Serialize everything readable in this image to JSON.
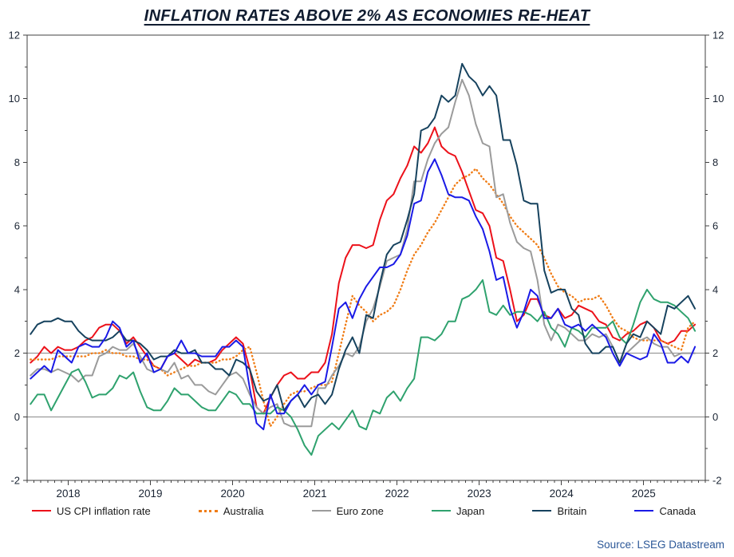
{
  "title": "INFLATION RATES ABOVE 2% AS ECONOMIES RE-HEAT",
  "source": "Source: LSEG Datastream",
  "colors": {
    "title_text": "#101c30",
    "axis_text": "#1a2433",
    "frame": "#404040",
    "reference_line": "#8a8a8a",
    "source_text": "#2b5797"
  },
  "chart_data": {
    "type": "line",
    "title": "INFLATION RATES ABOVE 2% AS ECONOMIES RE-HEAT",
    "xlabel": "",
    "ylabel": "",
    "legend_position": "bottom",
    "grid": "reference lines at 0 and 2 only",
    "x_start": {
      "year": 2017,
      "month": 7
    },
    "x_frequency": "monthly",
    "x_axis": {
      "range": [
        2017.5,
        2025.75
      ],
      "tick_labels": [
        "2018",
        "2019",
        "2020",
        "2021",
        "2022",
        "2023",
        "2024",
        "2025"
      ],
      "tick_positions": [
        2018,
        2019,
        2020,
        2021,
        2022,
        2023,
        2024,
        2025
      ]
    },
    "y_axis": {
      "range": [
        -2,
        12
      ],
      "tick_step": 2,
      "tick_labels": [
        "-2",
        "0",
        "2",
        "4",
        "6",
        "8",
        "10",
        "12"
      ],
      "labels_on_both_sides": true,
      "reference_lines": [
        0,
        2
      ]
    },
    "series": [
      {
        "name": "US CPI inflation rate",
        "color": "#ec111a",
        "style": "solid",
        "values": [
          1.7,
          1.9,
          2.2,
          2.0,
          2.2,
          2.1,
          2.1,
          2.2,
          2.4,
          2.5,
          2.8,
          2.9,
          2.9,
          2.7,
          2.3,
          2.5,
          2.2,
          1.9,
          1.6,
          1.5,
          1.9,
          2.0,
          1.8,
          1.6,
          1.8,
          1.7,
          1.7,
          1.8,
          2.1,
          2.3,
          2.5,
          2.3,
          1.5,
          0.3,
          0.1,
          0.6,
          1.0,
          1.3,
          1.4,
          1.2,
          1.2,
          1.4,
          1.4,
          1.7,
          2.6,
          4.2,
          5.0,
          5.4,
          5.4,
          5.3,
          5.4,
          6.2,
          6.8,
          7.0,
          7.5,
          7.9,
          8.5,
          8.3,
          8.6,
          9.1,
          8.5,
          8.3,
          8.2,
          7.7,
          7.1,
          6.5,
          6.4,
          6.0,
          5.0,
          4.9,
          4.0,
          3.0,
          3.2,
          3.7,
          3.7,
          3.2,
          3.1,
          3.4,
          3.1,
          3.2,
          3.5,
          3.4,
          3.3,
          3.0,
          2.9,
          2.5,
          2.4,
          2.6,
          2.7,
          2.9,
          3.0,
          2.8,
          2.4,
          2.3,
          2.4,
          2.7,
          2.7,
          2.9
        ]
      },
      {
        "name": "Australia",
        "color": "#f07d17",
        "style": "dotted",
        "values": [
          1.8,
          1.8,
          1.8,
          1.8,
          1.9,
          1.9,
          1.9,
          1.9,
          1.9,
          2.0,
          2.0,
          2.1,
          2.0,
          2.0,
          1.9,
          1.9,
          1.8,
          1.8,
          1.6,
          1.5,
          1.3,
          1.4,
          1.5,
          1.6,
          1.6,
          1.7,
          1.7,
          1.7,
          1.8,
          1.8,
          1.9,
          2.1,
          2.2,
          1.4,
          0.5,
          -0.3,
          0.0,
          0.4,
          0.7,
          0.8,
          0.8,
          0.9,
          1.0,
          1.0,
          1.1,
          2.0,
          2.9,
          3.8,
          3.5,
          3.3,
          3.0,
          3.2,
          3.3,
          3.5,
          4.0,
          4.6,
          5.1,
          5.4,
          5.8,
          6.1,
          6.5,
          6.9,
          7.3,
          7.5,
          7.6,
          7.8,
          7.5,
          7.3,
          7.0,
          6.7,
          6.3,
          6.0,
          5.8,
          5.6,
          5.4,
          5.0,
          4.5,
          4.1,
          3.9,
          3.8,
          3.6,
          3.7,
          3.7,
          3.8,
          3.5,
          3.1,
          2.8,
          2.7,
          2.5,
          2.4,
          2.4,
          2.4,
          2.4,
          2.3,
          2.2,
          2.1,
          2.8,
          3.0
        ]
      },
      {
        "name": "Euro zone",
        "color": "#9b9b9b",
        "style": "solid",
        "values": [
          1.3,
          1.5,
          1.5,
          1.4,
          1.5,
          1.4,
          1.3,
          1.1,
          1.3,
          1.3,
          1.9,
          2.0,
          2.2,
          2.1,
          2.1,
          2.3,
          1.9,
          1.5,
          1.4,
          1.5,
          1.4,
          1.7,
          1.2,
          1.3,
          1.0,
          1.0,
          0.8,
          0.7,
          1.0,
          1.3,
          1.4,
          1.2,
          0.7,
          0.3,
          0.1,
          0.3,
          0.4,
          -0.2,
          -0.3,
          -0.3,
          -0.3,
          -0.3,
          0.9,
          0.9,
          1.3,
          1.6,
          2.0,
          1.9,
          2.2,
          3.0,
          3.4,
          4.1,
          4.9,
          5.0,
          5.1,
          5.9,
          7.4,
          7.4,
          8.1,
          8.6,
          8.9,
          9.1,
          9.9,
          10.6,
          10.1,
          9.2,
          8.6,
          8.5,
          6.9,
          7.0,
          6.1,
          5.5,
          5.3,
          5.2,
          4.3,
          2.9,
          2.4,
          2.9,
          2.8,
          2.6,
          2.4,
          2.4,
          2.6,
          2.5,
          2.6,
          2.2,
          1.7,
          2.0,
          2.2,
          2.4,
          2.5,
          2.3,
          2.2,
          2.2,
          1.9,
          2.0,
          2.0,
          2.0
        ]
      },
      {
        "name": "Japan",
        "color": "#2fa26e",
        "style": "solid",
        "values": [
          0.4,
          0.7,
          0.7,
          0.2,
          0.6,
          1.0,
          1.4,
          1.5,
          1.1,
          0.6,
          0.7,
          0.7,
          0.9,
          1.3,
          1.2,
          1.4,
          0.8,
          0.3,
          0.2,
          0.2,
          0.5,
          0.9,
          0.7,
          0.7,
          0.5,
          0.3,
          0.2,
          0.2,
          0.5,
          0.8,
          0.7,
          0.4,
          0.4,
          0.1,
          0.1,
          0.1,
          0.3,
          0.2,
          0.0,
          -0.4,
          -0.9,
          -1.2,
          -0.6,
          -0.4,
          -0.2,
          -0.4,
          -0.1,
          0.2,
          -0.3,
          -0.4,
          0.2,
          0.1,
          0.6,
          0.8,
          0.5,
          0.9,
          1.2,
          2.5,
          2.5,
          2.4,
          2.6,
          3.0,
          3.0,
          3.7,
          3.8,
          4.0,
          4.3,
          3.3,
          3.2,
          3.5,
          3.2,
          3.3,
          3.3,
          3.2,
          3.0,
          3.3,
          2.8,
          2.6,
          2.2,
          2.8,
          2.7,
          2.5,
          2.8,
          2.8,
          2.8,
          3.0,
          2.5,
          2.3,
          2.9,
          3.6,
          4.0,
          3.7,
          3.6,
          3.6,
          3.5,
          3.3,
          3.1,
          2.7
        ]
      },
      {
        "name": "Britain",
        "color": "#16425e",
        "style": "solid",
        "values": [
          2.6,
          2.9,
          3.0,
          3.0,
          3.1,
          3.0,
          3.0,
          2.7,
          2.5,
          2.4,
          2.4,
          2.4,
          2.5,
          2.7,
          2.4,
          2.4,
          2.3,
          2.1,
          1.8,
          1.9,
          1.9,
          2.1,
          2.0,
          2.0,
          2.1,
          1.7,
          1.7,
          1.5,
          1.5,
          1.3,
          1.8,
          1.7,
          1.5,
          0.8,
          0.5,
          0.6,
          1.0,
          0.2,
          0.5,
          0.7,
          0.3,
          0.6,
          0.7,
          0.4,
          0.7,
          1.5,
          2.1,
          2.5,
          2.0,
          3.2,
          3.1,
          4.2,
          5.1,
          5.4,
          5.5,
          6.2,
          7.0,
          9.0,
          9.1,
          9.4,
          10.1,
          9.9,
          10.1,
          11.1,
          10.7,
          10.5,
          10.1,
          10.4,
          10.1,
          8.7,
          8.7,
          7.9,
          6.8,
          6.7,
          6.7,
          4.6,
          3.9,
          4.0,
          4.0,
          3.4,
          3.2,
          2.3,
          2.0,
          2.0,
          2.2,
          2.2,
          1.7,
          2.3,
          2.6,
          2.5,
          3.0,
          2.8,
          2.6,
          3.5,
          3.4,
          3.6,
          3.8,
          3.4
        ]
      },
      {
        "name": "Canada",
        "color": "#1a1ae6",
        "style": "solid",
        "values": [
          1.2,
          1.4,
          1.6,
          1.4,
          2.1,
          1.9,
          1.7,
          2.2,
          2.3,
          2.2,
          2.2,
          2.5,
          3.0,
          2.8,
          2.2,
          2.4,
          1.7,
          2.0,
          1.4,
          1.5,
          1.9,
          2.0,
          2.4,
          2.0,
          2.0,
          1.9,
          1.9,
          1.9,
          2.2,
          2.2,
          2.4,
          2.2,
          0.9,
          -0.2,
          -0.4,
          0.7,
          0.1,
          0.1,
          0.5,
          0.7,
          1.0,
          0.7,
          1.0,
          1.1,
          2.2,
          3.4,
          3.6,
          3.1,
          3.7,
          4.1,
          4.4,
          4.7,
          4.7,
          4.8,
          5.1,
          5.7,
          6.7,
          6.8,
          7.7,
          8.1,
          7.6,
          7.0,
          6.9,
          6.9,
          6.8,
          6.3,
          5.9,
          5.2,
          4.3,
          4.4,
          3.4,
          2.8,
          3.3,
          4.0,
          3.8,
          3.1,
          3.1,
          3.4,
          2.9,
          2.8,
          2.9,
          2.7,
          2.9,
          2.7,
          2.5,
          2.0,
          1.6,
          2.0,
          1.9,
          1.8,
          1.9,
          2.6,
          2.3,
          1.7,
          1.7,
          1.9,
          1.7,
          2.2
        ]
      }
    ]
  }
}
